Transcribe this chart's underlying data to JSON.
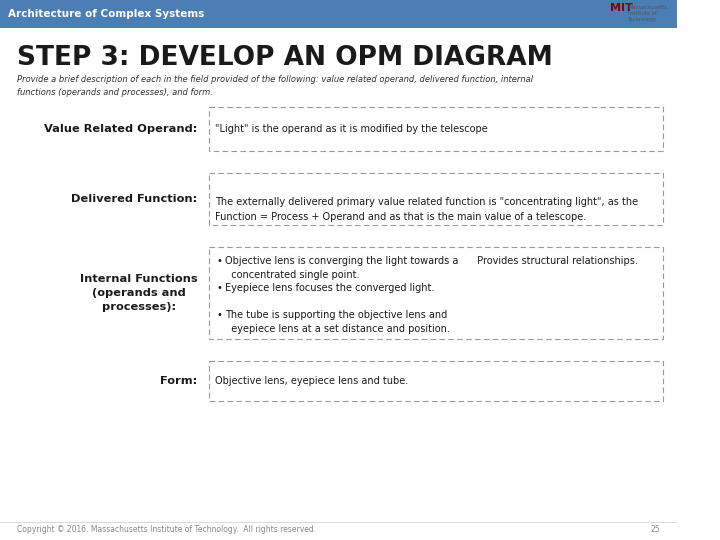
{
  "header_bg": "#4a7eb5",
  "header_text": "Architecture of Complex Systems",
  "header_text_color": "#ffffff",
  "title": "STEP 3: DEVELOP AN OPM DIAGRAM",
  "title_color": "#1a1a1a",
  "subtitle": "Provide a brief description of each in the field provided of the following: value related operand, delivered function, internal\nfunctions (operands and processes), and form.",
  "subtitle_color": "#333333",
  "bg_color": "#ffffff",
  "label_color": "#1a1a1a",
  "box_border_color": "#888888",
  "rows": [
    {
      "label": "Value Related Operand:",
      "content": "\"Light\" is the operand as it is modified by the telescope"
    },
    {
      "label": "Delivered Function:",
      "content": "The externally delivered primary value related function is \"concentrating light\", as the\nFunction = Process + Operand and as that is the main value of a telescope."
    },
    {
      "label": "Internal Functions\n(operands and\nprocesses):",
      "content_bullets": [
        "Objective lens is converging the light towards a      Provides structural relationships.\n  concentrated single point.",
        "Eyepiece lens focuses the converged light.",
        "The tube is supporting the objective lens and\n  eyepiece lens at a set distance and position."
      ]
    },
    {
      "label": "Form:",
      "content": "Objective lens, eyepiece lens and tube."
    }
  ],
  "footer_text": "Copyright © 2016. Massachusetts Institute of Technology.  All rights reserved.",
  "footer_page": "25",
  "footer_color": "#888888"
}
